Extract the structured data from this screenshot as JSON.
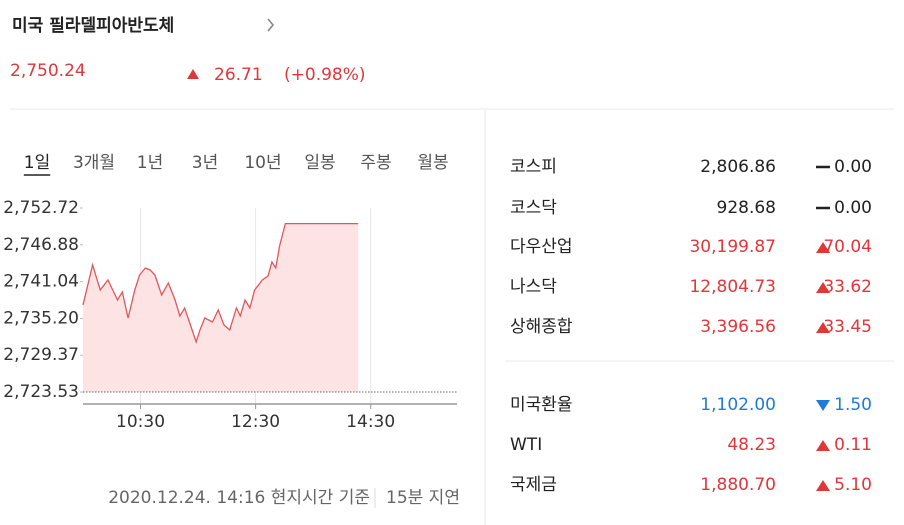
{
  "header": {
    "title": "미국 필라델피아반도체",
    "price": "2,750.24",
    "change": "26.71",
    "change_pct": "(+0.98%)",
    "direction": "up"
  },
  "tabs": {
    "items": [
      "1일",
      "3개월",
      "1년",
      "3년",
      "10년",
      "일봉",
      "주봉",
      "월봉"
    ],
    "active": 0
  },
  "chart_data": {
    "type": "line",
    "color": "#e0575c",
    "fill": "#fde3e3",
    "base_value": 2723.53,
    "x": [
      570,
      580,
      588,
      596,
      606,
      611,
      617,
      624,
      629,
      635,
      640,
      645,
      652,
      659,
      666,
      671,
      676,
      682,
      688,
      692,
      697,
      705,
      711,
      717,
      723,
      730,
      734,
      739,
      744,
      749,
      757,
      763,
      767,
      771,
      775,
      781,
      857
    ],
    "values": [
      2737.34,
      2743.68,
      2739.72,
      2741.3,
      2738.13,
      2739.4,
      2735.28,
      2739.72,
      2742.09,
      2743.2,
      2742.89,
      2742.09,
      2738.92,
      2740.83,
      2738.13,
      2735.59,
      2736.86,
      2734.16,
      2731.47,
      2733.37,
      2735.28,
      2734.64,
      2736.54,
      2734.16,
      2733.37,
      2736.86,
      2735.59,
      2738.13,
      2736.86,
      2739.72,
      2741.3,
      2741.94,
      2744.16,
      2743.2,
      2746.69,
      2750.24,
      2750.24
    ],
    "xlim": [
      570,
      960
    ],
    "ylim": [
      2721.63,
      2752.72
    ],
    "xticks": [
      {
        "value": 630,
        "label": "10:30"
      },
      {
        "value": 750,
        "label": "12:30"
      },
      {
        "value": 870,
        "label": "14:30"
      }
    ],
    "yticks": [
      {
        "value": 2752.72,
        "label": "2,752.72"
      },
      {
        "value": 2746.88,
        "label": "2,746.88"
      },
      {
        "value": 2741.04,
        "label": "2,741.04"
      },
      {
        "value": 2735.2,
        "label": "2,735.20"
      },
      {
        "value": 2729.37,
        "label": "2,729.37"
      },
      {
        "value": 2723.53,
        "label": "2,723.53"
      }
    ],
    "grid": true
  },
  "markets": [
    [
      {
        "name": "코스피",
        "value": "2,806.86",
        "change": "0.00",
        "direction": "flat"
      },
      {
        "name": "코스닥",
        "value": "928.68",
        "change": "0.00",
        "direction": "flat"
      },
      {
        "name": "다우산업",
        "value": "30,199.87",
        "change": "70.04",
        "direction": "up"
      },
      {
        "name": "나스닥",
        "value": "12,804.73",
        "change": "33.62",
        "direction": "up"
      },
      {
        "name": "상해종합",
        "value": "3,396.56",
        "change": "33.45",
        "direction": "up"
      }
    ],
    [
      {
        "name": "미국환율",
        "value": "1,102.00",
        "change": "1.50",
        "direction": "down"
      },
      {
        "name": "WTI",
        "value": "48.23",
        "change": "0.11",
        "direction": "up"
      },
      {
        "name": "국제금",
        "value": "1,880.70",
        "change": "5.10",
        "direction": "up"
      }
    ]
  ],
  "footer": {
    "time": "2020.12.24. 14:16 현지시간 기준",
    "delay": "15분 지연"
  }
}
